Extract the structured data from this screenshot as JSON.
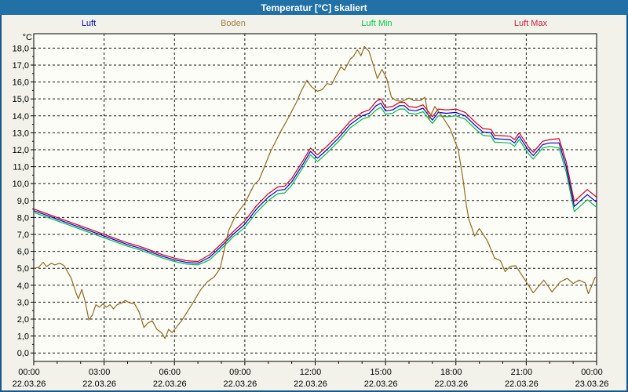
{
  "window": {
    "title": "Temperatur [°C] skaliert"
  },
  "legend": {
    "items": [
      {
        "label": "Luft",
        "color": "#0000CC"
      },
      {
        "label": "Boden",
        "color": "#A28042"
      },
      {
        "label": "Luft Min",
        "color": "#00CC44"
      },
      {
        "label": "Luft Max",
        "color": "#CC2244"
      }
    ]
  },
  "colors": {
    "titlebar_bg": "#2171A6",
    "window_border": "#19588A",
    "page_bg": "#F2F2EB",
    "plot_bg": "#FDFDF7",
    "grid": "#141414"
  },
  "chart_data": {
    "type": "line",
    "title": "Temperatur [°C] skaliert",
    "xlabel": "",
    "ylabel": "°C",
    "xlim": [
      0,
      24
    ],
    "ylim": [
      -0.5,
      18.85
    ],
    "grid": true,
    "legend_position": "top",
    "x_axis": {
      "tick_hours": [
        0,
        3,
        6,
        9,
        12,
        15,
        18,
        21,
        24
      ],
      "tick_times": [
        "00:00",
        "03:00",
        "06:00",
        "09:00",
        "12:00",
        "15:00",
        "18:00",
        "21:00",
        "00:00"
      ],
      "tick_dates": [
        "22.03.26",
        "22.03.26",
        "22.03.26",
        "22.03.26",
        "22.03.26",
        "22.03.26",
        "22.03.26",
        "22.03.26",
        "23.03.26"
      ],
      "minor_step_hours": 1
    },
    "y_axis": {
      "unit": "°C",
      "minor_step": 0.5,
      "tick_values": [
        0,
        1,
        2,
        3,
        4,
        5,
        6,
        7,
        8,
        9,
        10,
        11,
        12,
        13,
        14,
        15,
        16,
        17,
        18
      ],
      "tick_labels": [
        "0,0",
        "1,0",
        "2,0",
        "3,0",
        "4,0",
        "5,0",
        "6,0",
        "7,0",
        "8,0",
        "9,0",
        "10,0",
        "11,0",
        "12,0",
        "13,0",
        "14,0",
        "15,0",
        "16,0",
        "17,0",
        "18,0"
      ]
    },
    "series": [
      {
        "name": "Luft",
        "color": "#0000CC",
        "points": [
          [
            0,
            8.4
          ],
          [
            0.5,
            8.15
          ],
          [
            1,
            7.9
          ],
          [
            1.5,
            7.65
          ],
          [
            2,
            7.4
          ],
          [
            2.5,
            7.15
          ],
          [
            3,
            6.9
          ],
          [
            3.5,
            6.65
          ],
          [
            4,
            6.4
          ],
          [
            4.5,
            6.2
          ],
          [
            5,
            5.95
          ],
          [
            5.5,
            5.7
          ],
          [
            6,
            5.5
          ],
          [
            6.5,
            5.35
          ],
          [
            7,
            5.3
          ],
          [
            7.5,
            5.65
          ],
          [
            8,
            6.3
          ],
          [
            8.5,
            7.0
          ],
          [
            9,
            7.6
          ],
          [
            9.5,
            8.5
          ],
          [
            10,
            9.2
          ],
          [
            10.4,
            9.6
          ],
          [
            10.7,
            9.65
          ],
          [
            11,
            10.1
          ],
          [
            11.5,
            11.2
          ],
          [
            11.8,
            11.9
          ],
          [
            12.1,
            11.5
          ],
          [
            12.5,
            12.0
          ],
          [
            13,
            12.7
          ],
          [
            13.5,
            13.5
          ],
          [
            14,
            14.0
          ],
          [
            14.3,
            14.15
          ],
          [
            14.6,
            14.6
          ],
          [
            14.8,
            14.75
          ],
          [
            15,
            14.3
          ],
          [
            15.3,
            14.35
          ],
          [
            15.6,
            14.6
          ],
          [
            15.8,
            14.6
          ],
          [
            16,
            14.35
          ],
          [
            16.3,
            14.3
          ],
          [
            16.6,
            14.45
          ],
          [
            17,
            13.75
          ],
          [
            17.25,
            14.2
          ],
          [
            17.6,
            14.15
          ],
          [
            18,
            14.2
          ],
          [
            18.4,
            14.0
          ],
          [
            18.85,
            13.4
          ],
          [
            19.15,
            13.05
          ],
          [
            19.5,
            13.0
          ],
          [
            19.65,
            12.65
          ],
          [
            20.3,
            12.6
          ],
          [
            20.5,
            12.4
          ],
          [
            20.7,
            12.8
          ],
          [
            21.1,
            11.95
          ],
          [
            21.3,
            11.65
          ],
          [
            21.7,
            12.3
          ],
          [
            22,
            12.4
          ],
          [
            22.4,
            12.4
          ],
          [
            22.7,
            11.0
          ],
          [
            23.05,
            8.65
          ],
          [
            23.6,
            9.35
          ],
          [
            24,
            8.9
          ]
        ]
      },
      {
        "name": "Boden",
        "color": "#8F6A1F",
        "points": [
          [
            0,
            5.0
          ],
          [
            0.2,
            5.05
          ],
          [
            0.4,
            5.35
          ],
          [
            0.55,
            5.1
          ],
          [
            0.75,
            5.3
          ],
          [
            0.9,
            5.2
          ],
          [
            1.1,
            5.3
          ],
          [
            1.3,
            5.15
          ],
          [
            1.6,
            4.4
          ],
          [
            1.8,
            3.55
          ],
          [
            1.9,
            3.2
          ],
          [
            2.05,
            3.75
          ],
          [
            2.2,
            3.0
          ],
          [
            2.35,
            1.95
          ],
          [
            2.5,
            2.25
          ],
          [
            2.65,
            2.85
          ],
          [
            2.8,
            2.7
          ],
          [
            2.95,
            2.9
          ],
          [
            3.1,
            2.7
          ],
          [
            3.25,
            2.85
          ],
          [
            3.4,
            2.6
          ],
          [
            3.55,
            2.85
          ],
          [
            3.75,
            2.95
          ],
          [
            3.9,
            3.1
          ],
          [
            4.1,
            2.95
          ],
          [
            4.3,
            2.9
          ],
          [
            4.5,
            2.4
          ],
          [
            4.7,
            1.5
          ],
          [
            4.85,
            1.75
          ],
          [
            5.05,
            1.9
          ],
          [
            5.25,
            1.4
          ],
          [
            5.45,
            1.2
          ],
          [
            5.6,
            0.85
          ],
          [
            5.75,
            1.4
          ],
          [
            5.9,
            1.2
          ],
          [
            6.1,
            1.55
          ],
          [
            6.35,
            2.0
          ],
          [
            6.6,
            2.55
          ],
          [
            6.85,
            3.1
          ],
          [
            7.1,
            3.7
          ],
          [
            7.4,
            4.2
          ],
          [
            7.7,
            4.5
          ],
          [
            7.95,
            5.0
          ],
          [
            8.3,
            7.2
          ],
          [
            8.6,
            8.1
          ],
          [
            9,
            8.85
          ],
          [
            9.4,
            9.95
          ],
          [
            9.6,
            10.2
          ],
          [
            9.75,
            10.7
          ],
          [
            10.1,
            11.9
          ],
          [
            10.5,
            13.0
          ],
          [
            10.9,
            14.0
          ],
          [
            11.2,
            14.8
          ],
          [
            11.4,
            15.45
          ],
          [
            11.65,
            16.1
          ],
          [
            11.85,
            15.7
          ],
          [
            12.1,
            15.45
          ],
          [
            12.3,
            15.55
          ],
          [
            12.5,
            15.9
          ],
          [
            12.7,
            15.85
          ],
          [
            12.9,
            16.4
          ],
          [
            13.1,
            16.9
          ],
          [
            13.25,
            16.7
          ],
          [
            13.5,
            17.35
          ],
          [
            13.65,
            17.55
          ],
          [
            13.8,
            17.9
          ],
          [
            13.95,
            17.55
          ],
          [
            14.1,
            18.1
          ],
          [
            14.3,
            17.8
          ],
          [
            14.5,
            16.9
          ],
          [
            14.65,
            16.2
          ],
          [
            14.85,
            16.75
          ],
          [
            15.05,
            16.2
          ],
          [
            15.25,
            15.1
          ],
          [
            15.45,
            14.9
          ],
          [
            15.7,
            14.85
          ],
          [
            16,
            15.05
          ],
          [
            16.2,
            14.9
          ],
          [
            16.5,
            14.9
          ],
          [
            16.68,
            15.1
          ],
          [
            16.85,
            13.8
          ],
          [
            17.1,
            14.55
          ],
          [
            17.45,
            13.9
          ],
          [
            17.75,
            13.25
          ],
          [
            18.1,
            12.0
          ],
          [
            18.3,
            10.3
          ],
          [
            18.45,
            8.7
          ],
          [
            18.55,
            7.9
          ],
          [
            18.8,
            6.9
          ],
          [
            19,
            7.35
          ],
          [
            19.35,
            6.6
          ],
          [
            19.65,
            5.6
          ],
          [
            19.9,
            5.45
          ],
          [
            20.1,
            4.8
          ],
          [
            20.3,
            5.1
          ],
          [
            20.55,
            5.15
          ],
          [
            21,
            4.2
          ],
          [
            21.3,
            3.55
          ],
          [
            21.75,
            4.3
          ],
          [
            22.1,
            3.6
          ],
          [
            22.45,
            4.2
          ],
          [
            22.75,
            4.4
          ],
          [
            23,
            4.1
          ],
          [
            23.25,
            4.3
          ],
          [
            23.5,
            4.15
          ],
          [
            23.65,
            3.5
          ],
          [
            23.95,
            4.5
          ]
        ]
      },
      {
        "name": "Luft Min",
        "color": "#00B844",
        "points": [
          [
            0,
            8.3
          ],
          [
            0.5,
            8.05
          ],
          [
            1,
            7.8
          ],
          [
            1.5,
            7.55
          ],
          [
            2,
            7.3
          ],
          [
            2.5,
            7.05
          ],
          [
            3,
            6.8
          ],
          [
            3.5,
            6.55
          ],
          [
            4,
            6.3
          ],
          [
            4.5,
            6.1
          ],
          [
            5,
            5.85
          ],
          [
            5.5,
            5.6
          ],
          [
            6,
            5.4
          ],
          [
            6.5,
            5.25
          ],
          [
            7,
            5.2
          ],
          [
            7.5,
            5.5
          ],
          [
            8,
            6.15
          ],
          [
            8.5,
            6.85
          ],
          [
            9,
            7.4
          ],
          [
            9.5,
            8.3
          ],
          [
            10,
            9.0
          ],
          [
            10.4,
            9.4
          ],
          [
            10.7,
            9.45
          ],
          [
            11,
            9.9
          ],
          [
            11.5,
            11.0
          ],
          [
            11.8,
            11.7
          ],
          [
            12.1,
            11.3
          ],
          [
            12.5,
            11.8
          ],
          [
            13,
            12.5
          ],
          [
            13.5,
            13.3
          ],
          [
            14,
            13.8
          ],
          [
            14.3,
            13.95
          ],
          [
            14.6,
            14.35
          ],
          [
            14.8,
            14.5
          ],
          [
            15,
            14.1
          ],
          [
            15.3,
            14.15
          ],
          [
            15.6,
            14.4
          ],
          [
            15.8,
            14.4
          ],
          [
            16,
            14.15
          ],
          [
            16.3,
            14.1
          ],
          [
            16.6,
            14.25
          ],
          [
            17,
            13.55
          ],
          [
            17.25,
            14.0
          ],
          [
            17.6,
            13.95
          ],
          [
            18,
            14.0
          ],
          [
            18.4,
            13.8
          ],
          [
            18.85,
            13.2
          ],
          [
            19.15,
            12.85
          ],
          [
            19.5,
            12.8
          ],
          [
            19.65,
            12.45
          ],
          [
            20.3,
            12.4
          ],
          [
            20.5,
            12.2
          ],
          [
            20.7,
            12.6
          ],
          [
            21.1,
            11.75
          ],
          [
            21.3,
            11.45
          ],
          [
            21.7,
            12.1
          ],
          [
            22,
            12.2
          ],
          [
            22.4,
            12.1
          ],
          [
            22.7,
            10.7
          ],
          [
            23.05,
            8.35
          ],
          [
            23.6,
            9.05
          ],
          [
            24,
            8.6
          ]
        ]
      },
      {
        "name": "Luft Max",
        "color": "#CC0022",
        "points": [
          [
            0,
            8.5
          ],
          [
            0.5,
            8.25
          ],
          [
            1,
            8.0
          ],
          [
            1.5,
            7.75
          ],
          [
            2,
            7.5
          ],
          [
            2.5,
            7.25
          ],
          [
            3,
            7.0
          ],
          [
            3.5,
            6.75
          ],
          [
            4,
            6.5
          ],
          [
            4.5,
            6.3
          ],
          [
            5,
            6.05
          ],
          [
            5.5,
            5.8
          ],
          [
            6,
            5.6
          ],
          [
            6.5,
            5.45
          ],
          [
            7,
            5.4
          ],
          [
            7.5,
            5.8
          ],
          [
            8,
            6.45
          ],
          [
            8.5,
            7.15
          ],
          [
            9,
            7.8
          ],
          [
            9.5,
            8.7
          ],
          [
            10,
            9.4
          ],
          [
            10.4,
            9.8
          ],
          [
            10.7,
            9.85
          ],
          [
            11,
            10.3
          ],
          [
            11.5,
            11.4
          ],
          [
            11.8,
            12.1
          ],
          [
            12.1,
            11.7
          ],
          [
            12.5,
            12.2
          ],
          [
            13,
            12.9
          ],
          [
            13.5,
            13.7
          ],
          [
            14,
            14.2
          ],
          [
            14.3,
            14.35
          ],
          [
            14.6,
            14.85
          ],
          [
            14.8,
            15.0
          ],
          [
            15,
            14.5
          ],
          [
            15.3,
            14.55
          ],
          [
            15.6,
            14.8
          ],
          [
            15.8,
            14.8
          ],
          [
            16,
            14.55
          ],
          [
            16.3,
            14.5
          ],
          [
            16.6,
            14.65
          ],
          [
            17,
            13.95
          ],
          [
            17.25,
            14.4
          ],
          [
            17.6,
            14.35
          ],
          [
            18,
            14.4
          ],
          [
            18.4,
            14.2
          ],
          [
            18.85,
            13.6
          ],
          [
            19.15,
            13.25
          ],
          [
            19.5,
            13.2
          ],
          [
            19.65,
            12.85
          ],
          [
            20.3,
            12.8
          ],
          [
            20.5,
            12.6
          ],
          [
            20.7,
            13.0
          ],
          [
            21.1,
            12.15
          ],
          [
            21.3,
            11.85
          ],
          [
            21.7,
            12.5
          ],
          [
            22,
            12.6
          ],
          [
            22.4,
            12.65
          ],
          [
            22.7,
            11.3
          ],
          [
            23.05,
            8.95
          ],
          [
            23.6,
            9.65
          ],
          [
            24,
            9.2
          ]
        ]
      }
    ]
  }
}
